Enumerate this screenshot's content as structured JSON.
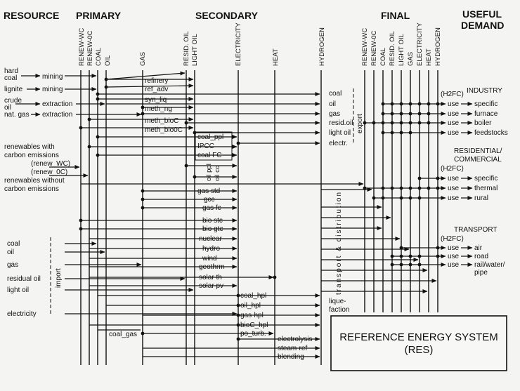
{
  "headers": {
    "resource": "RESOURCE",
    "primary": "PRIMARY",
    "secondary": "SECONDARY",
    "final": "FINAL",
    "useful_demand_line1": "USEFUL",
    "useful_demand_line2": "DEMAND"
  },
  "primary_carriers": [
    "RENEW-WC",
    "RENEW-0C",
    "COAL",
    "OIL",
    "GAS"
  ],
  "secondary_carriers": [
    "RESID. OIL",
    "LIGHT OIL",
    "ELECTRICITY",
    "HEAT",
    "HYDROGEN"
  ],
  "final_carriers": [
    "RENEW-WC",
    "RENEW-0C",
    "COAL",
    "RESID. OIL",
    "LIGHT OIL",
    "GAS",
    "ELECTRICITY",
    "HEAT",
    "HYDROGEN"
  ],
  "resources": {
    "hard_coal_1": "hard",
    "hard_coal_2": "coal",
    "lignite": "lignite",
    "crude_oil_1": "crude",
    "crude_oil_2": "oil",
    "nat_gas": "nat. gas",
    "mining": "mining",
    "extraction": "extraction",
    "renew_wc_title_1": "renewables with",
    "renew_wc_title_2": "carbon emissions",
    "renew_wc": "(renew_WC)",
    "renew_0c": "(renew_0C)",
    "renew_0c_title_1": "renewables without",
    "renew_0c_title_2": "carbon emissions"
  },
  "imports": {
    "label": "import",
    "items": [
      "coal",
      "oil",
      "gas",
      "residual oil",
      "light oil",
      "electricity"
    ]
  },
  "primary_processes": [
    "refinery",
    "ref_adv",
    "syn_liq",
    "meth_ng",
    "meth_bioC",
    "meth_bio0C"
  ],
  "secondary_processes": {
    "group1": [
      "coal_ppl",
      "IPCC",
      "coal FC"
    ],
    "oil_ppl": "oil ppl",
    "oil_cc": "oil cc",
    "group2": [
      "gas std",
      "gcc",
      "gas fc"
    ],
    "group3": [
      "bio stc",
      "bio gtc",
      "nuclear",
      "hydro",
      "wind",
      "geothrm",
      "solar th",
      "solar pv"
    ],
    "hydrogen": [
      "coal_hpl",
      "oil_hpl",
      "gas-hpl",
      "bioC_hpl",
      "po_turb."
    ],
    "coal_gas": "coal_gas",
    "hydrogen_prod": [
      "electrolysis",
      "steam-ref",
      "blending"
    ]
  },
  "export": {
    "label": "export",
    "items": [
      "coal",
      "oil",
      "gas",
      "resid.oil",
      "light oil",
      "electr."
    ]
  },
  "transport_distribution": "transport & distribution",
  "liquefaction_1": "lique-",
  "liquefaction_2": "faction",
  "h2fc": "(H2FC)",
  "use_label": "use",
  "demand": {
    "industry": {
      "title": "INDUSTRY",
      "items": [
        "specific",
        "furnace",
        "boiler",
        "feedstocks"
      ]
    },
    "residential": {
      "title1": "RESIDENTIAL/",
      "title2": "COMMERCIAL",
      "items": [
        "specific",
        "thermal",
        "rural"
      ]
    },
    "transport": {
      "title": "TRANSPORT",
      "items": [
        "air",
        "road",
        "rail/water/",
        "pipe"
      ]
    }
  },
  "box": {
    "line1": "REFERENCE ENERGY SYSTEM",
    "line2": "(RES)"
  }
}
